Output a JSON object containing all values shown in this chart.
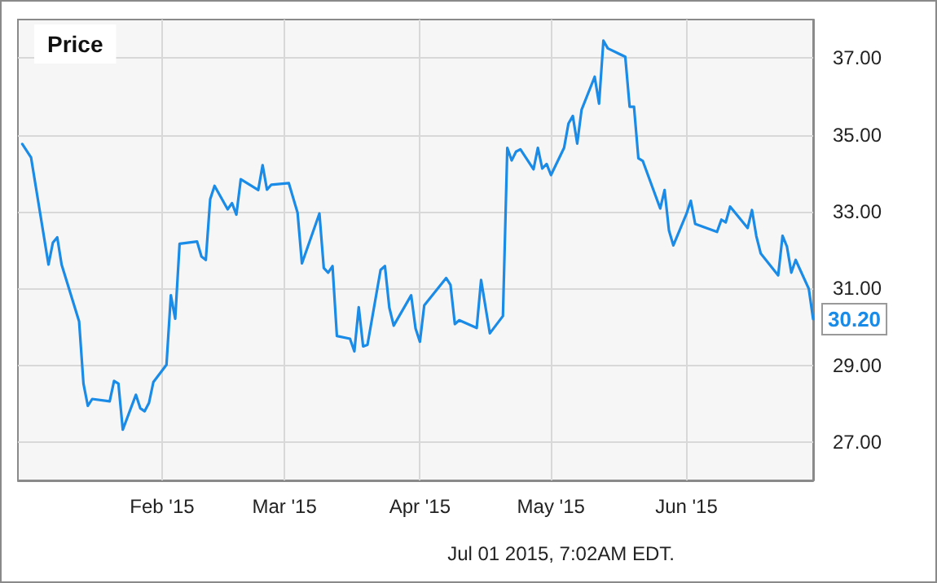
{
  "chart_data": {
    "type": "line",
    "title": "Price",
    "annotations": [
      "Jul 01 2015, 7:02AM EDT."
    ],
    "x": [
      "2014-12-31",
      "2015-01-02",
      "2015-01-06",
      "2015-01-07",
      "2015-01-08",
      "2015-01-09",
      "2015-01-13",
      "2015-01-14",
      "2015-01-15",
      "2015-01-16",
      "2015-01-20",
      "2015-01-21",
      "2015-01-22",
      "2015-01-23",
      "2015-01-26",
      "2015-01-27",
      "2015-01-28",
      "2015-01-29",
      "2015-01-30",
      "2015-02-02",
      "2015-02-03",
      "2015-02-04",
      "2015-02-05",
      "2015-02-09",
      "2015-02-10",
      "2015-02-11",
      "2015-02-12",
      "2015-02-13",
      "2015-02-16",
      "2015-02-17",
      "2015-02-18",
      "2015-02-19",
      "2015-02-23",
      "2015-02-24",
      "2015-02-25",
      "2015-02-26",
      "2015-03-02",
      "2015-03-04",
      "2015-03-05",
      "2015-03-09",
      "2015-03-10",
      "2015-03-11",
      "2015-03-12",
      "2015-03-13",
      "2015-03-16",
      "2015-03-17",
      "2015-03-18",
      "2015-03-19",
      "2015-03-20",
      "2015-03-23",
      "2015-03-24",
      "2015-03-25",
      "2015-03-26",
      "2015-03-30",
      "2015-03-31",
      "2015-04-01",
      "2015-04-02",
      "2015-04-07",
      "2015-04-08",
      "2015-04-09",
      "2015-04-10",
      "2015-04-14",
      "2015-04-15",
      "2015-04-17",
      "2015-04-20",
      "2015-04-21",
      "2015-04-22",
      "2015-04-23",
      "2015-04-24",
      "2015-04-27",
      "2015-04-28",
      "2015-04-29",
      "2015-04-30",
      "2015-05-01",
      "2015-05-04",
      "2015-05-05",
      "2015-05-06",
      "2015-05-07",
      "2015-05-08",
      "2015-05-11",
      "2015-05-12",
      "2015-05-13",
      "2015-05-14",
      "2015-05-18",
      "2015-05-19",
      "2015-05-20",
      "2015-05-21",
      "2015-05-22",
      "2015-05-26",
      "2015-05-27",
      "2015-05-28",
      "2015-05-29",
      "2015-06-01",
      "2015-06-02",
      "2015-06-03",
      "2015-06-08",
      "2015-06-09",
      "2015-06-10",
      "2015-06-11",
      "2015-06-15",
      "2015-06-16",
      "2015-06-17",
      "2015-06-18",
      "2015-06-22",
      "2015-06-23",
      "2015-06-24",
      "2015-06-25",
      "2015-06-26",
      "2015-06-29",
      "2015-06-30"
    ],
    "series": [
      {
        "color": "#1a8be6",
        "values": [
          34.76,
          34.41,
          31.62,
          32.19,
          32.33,
          31.62,
          30.14,
          28.52,
          27.94,
          28.12,
          28.06,
          28.59,
          28.52,
          27.32,
          28.23,
          27.88,
          27.8,
          28.02,
          28.56,
          29.01,
          30.82,
          30.21,
          32.16,
          32.22,
          31.83,
          31.74,
          33.32,
          33.67,
          33.06,
          33.22,
          32.92,
          33.84,
          33.56,
          34.21,
          33.57,
          33.7,
          33.74,
          32.97,
          31.65,
          32.95,
          31.53,
          31.41,
          31.58,
          29.76,
          29.69,
          29.36,
          30.51,
          29.49,
          29.53,
          31.48,
          31.58,
          30.5,
          30.03,
          30.82,
          29.96,
          29.61,
          30.56,
          31.27,
          31.09,
          30.07,
          30.17,
          29.97,
          31.22,
          29.83,
          30.28,
          34.66,
          34.33,
          34.56,
          34.62,
          34.1,
          34.66,
          34.12,
          34.24,
          33.95,
          34.66,
          35.29,
          35.49,
          34.77,
          35.65,
          36.51,
          35.81,
          37.45,
          37.25,
          37.03,
          35.73,
          35.73,
          34.39,
          34.32,
          33.08,
          33.56,
          32.51,
          32.12,
          32.94,
          33.28,
          32.68,
          32.47,
          32.79,
          32.72,
          33.13,
          32.57,
          33.04,
          32.36,
          31.91,
          31.34,
          32.37,
          32.09,
          31.41,
          31.74,
          30.99,
          30.2
        ],
        "value_labels": [
          null,
          null,
          null,
          null,
          null,
          null,
          null,
          null,
          null,
          null,
          null,
          null,
          null,
          null,
          null,
          null,
          null,
          null,
          null,
          null,
          null,
          null,
          null,
          null,
          null,
          null,
          null,
          null,
          null,
          null,
          null,
          null,
          null,
          null,
          null,
          null,
          null,
          null,
          null,
          null,
          null,
          null,
          null,
          null,
          null,
          null,
          null,
          null,
          null,
          null,
          null,
          null,
          null,
          null,
          null,
          null,
          null,
          null,
          null,
          null,
          null,
          null,
          null,
          null,
          null,
          null,
          null,
          null,
          null,
          null,
          null,
          null,
          null,
          null,
          null,
          null,
          null,
          null,
          null,
          null,
          null,
          null,
          null,
          null,
          null,
          null,
          null,
          null,
          null,
          null,
          null,
          null,
          null,
          null,
          null,
          null,
          null,
          null,
          null,
          null,
          null,
          null,
          null,
          null,
          null,
          null,
          null,
          null,
          null,
          "30.20"
        ]
      }
    ],
    "xlim": [
      "2014-12-30",
      "2015-06-30"
    ],
    "xticks": [
      {
        "value": "2015-02-01",
        "label": "Feb '15"
      },
      {
        "value": "2015-03-01",
        "label": "Mar '15"
      },
      {
        "value": "2015-04-01",
        "label": "Apr '15"
      },
      {
        "value": "2015-05-01",
        "label": "May '15"
      },
      {
        "value": "2015-06-01",
        "label": "Jun '15"
      }
    ],
    "ylim": [
      26,
      38
    ],
    "yticks": [
      {
        "value": 27,
        "label": "27.00"
      },
      {
        "value": 29,
        "label": "29.00"
      },
      {
        "value": 31,
        "label": "31.00"
      },
      {
        "value": 33,
        "label": "33.00"
      },
      {
        "value": 35,
        "label": "35.00"
      },
      {
        "value": 37,
        "label": "37.00"
      }
    ],
    "grid": true,
    "marker": "none",
    "line_style": "solid"
  }
}
